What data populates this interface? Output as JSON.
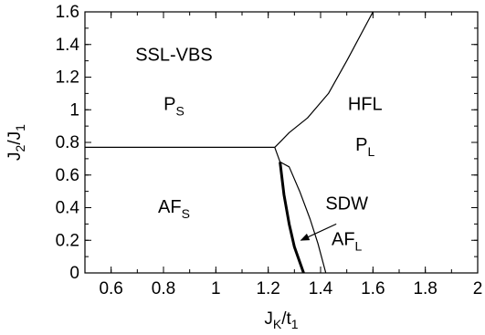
{
  "chart_data": {
    "type": "line",
    "title": "",
    "xlabel": "J",
    "xlabel_sub": "K",
    "xlabel_suffix": "/t",
    "xlabel_sub2": "1",
    "ylabel": "J",
    "ylabel_sub": "2",
    "ylabel_suffix": "/J",
    "ylabel_sub2": "1",
    "xlim": [
      0.5,
      2.0
    ],
    "ylim": [
      0,
      1.6
    ],
    "xticks": [
      {
        "value": 0.6,
        "label": "0.6"
      },
      {
        "value": 0.8,
        "label": "0.8"
      },
      {
        "value": 1.0,
        "label": "1"
      },
      {
        "value": 1.2,
        "label": "1.2"
      },
      {
        "value": 1.4,
        "label": "1.4"
      },
      {
        "value": 1.6,
        "label": "1.6"
      },
      {
        "value": 1.8,
        "label": "1.8"
      },
      {
        "value": 2.0,
        "label": "2"
      }
    ],
    "yticks": [
      {
        "value": 0,
        "label": "0"
      },
      {
        "value": 0.2,
        "label": "0.2"
      },
      {
        "value": 0.4,
        "label": "0.4"
      },
      {
        "value": 0.6,
        "label": "0.6"
      },
      {
        "value": 0.8,
        "label": "0.8"
      },
      {
        "value": 1.0,
        "label": "1"
      },
      {
        "value": 1.2,
        "label": "1.2"
      },
      {
        "value": 1.4,
        "label": "1.4"
      },
      {
        "value": 1.6,
        "label": "1.6"
      }
    ],
    "grid": false,
    "series": [
      {
        "id": "horizontal-boundary",
        "x": [
          0.5,
          1.225
        ],
        "y": [
          0.77,
          0.77
        ],
        "weight": "thin"
      },
      {
        "id": "hfl-boundary",
        "x": [
          1.225,
          1.25,
          1.28,
          1.35,
          1.43,
          1.5,
          1.6
        ],
        "y": [
          0.77,
          0.81,
          0.86,
          0.95,
          1.1,
          1.3,
          1.6
        ],
        "weight": "thin"
      },
      {
        "id": "afs-boundary-thick",
        "x": [
          1.245,
          1.26,
          1.28,
          1.3,
          1.335
        ],
        "y": [
          0.68,
          0.48,
          0.3,
          0.16,
          0
        ],
        "weight": "thick"
      },
      {
        "id": "sdw-boundary-thin",
        "x": [
          1.245,
          1.28,
          1.32,
          1.36,
          1.39,
          1.42
        ],
        "y": [
          0.68,
          0.65,
          0.5,
          0.33,
          0.18,
          0
        ],
        "weight": "thin"
      },
      {
        "id": "vertical-boundary",
        "x": [
          1.225,
          1.245
        ],
        "y": [
          0.77,
          0.68
        ],
        "weight": "thin"
      }
    ],
    "regions": [
      {
        "id": "ssl-vbs",
        "text": "SSL-VBS",
        "x": 0.84,
        "y": 1.3
      },
      {
        "id": "ps",
        "text": "P",
        "sub": "S",
        "x": 0.84,
        "y": 1.0
      },
      {
        "id": "hfl",
        "text": "HFL",
        "x": 1.57,
        "y": 1.0
      },
      {
        "id": "pl",
        "text": "P",
        "sub": "L",
        "x": 1.57,
        "y": 0.75
      },
      {
        "id": "afs",
        "text": "AF",
        "sub": "S",
        "x": 0.84,
        "y": 0.37
      },
      {
        "id": "sdw",
        "text": "SDW",
        "x": 1.5,
        "y": 0.39
      },
      {
        "id": "afl",
        "text": "AF",
        "sub": "L",
        "x": 1.5,
        "y": 0.17
      }
    ],
    "arrow": {
      "from": [
        1.46,
        0.3
      ],
      "to": [
        1.325,
        0.2
      ]
    }
  }
}
